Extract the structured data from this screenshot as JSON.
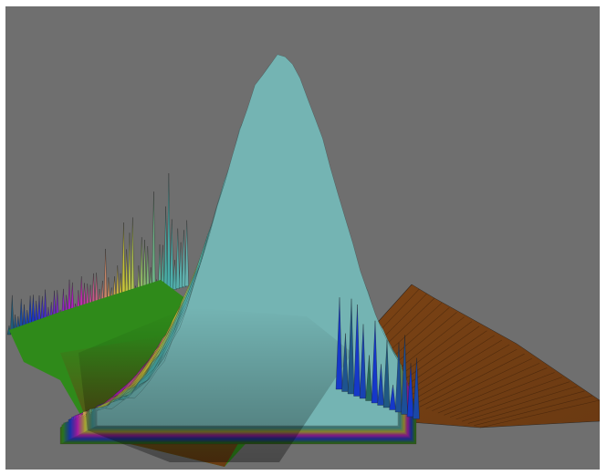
{
  "scene": {
    "background_color": "#6f6f6f",
    "frame_color": "#ffffff",
    "surface_colors": {
      "base": "#6b3a12",
      "low": "#2f8a1a",
      "mid_low": "#1538c9",
      "mid": "#c21bbf",
      "mid_high": "#c9c235",
      "high": "#45aaa7",
      "peak": "#8fb9ba",
      "mesh_line": "#1d1d1d"
    }
  }
}
